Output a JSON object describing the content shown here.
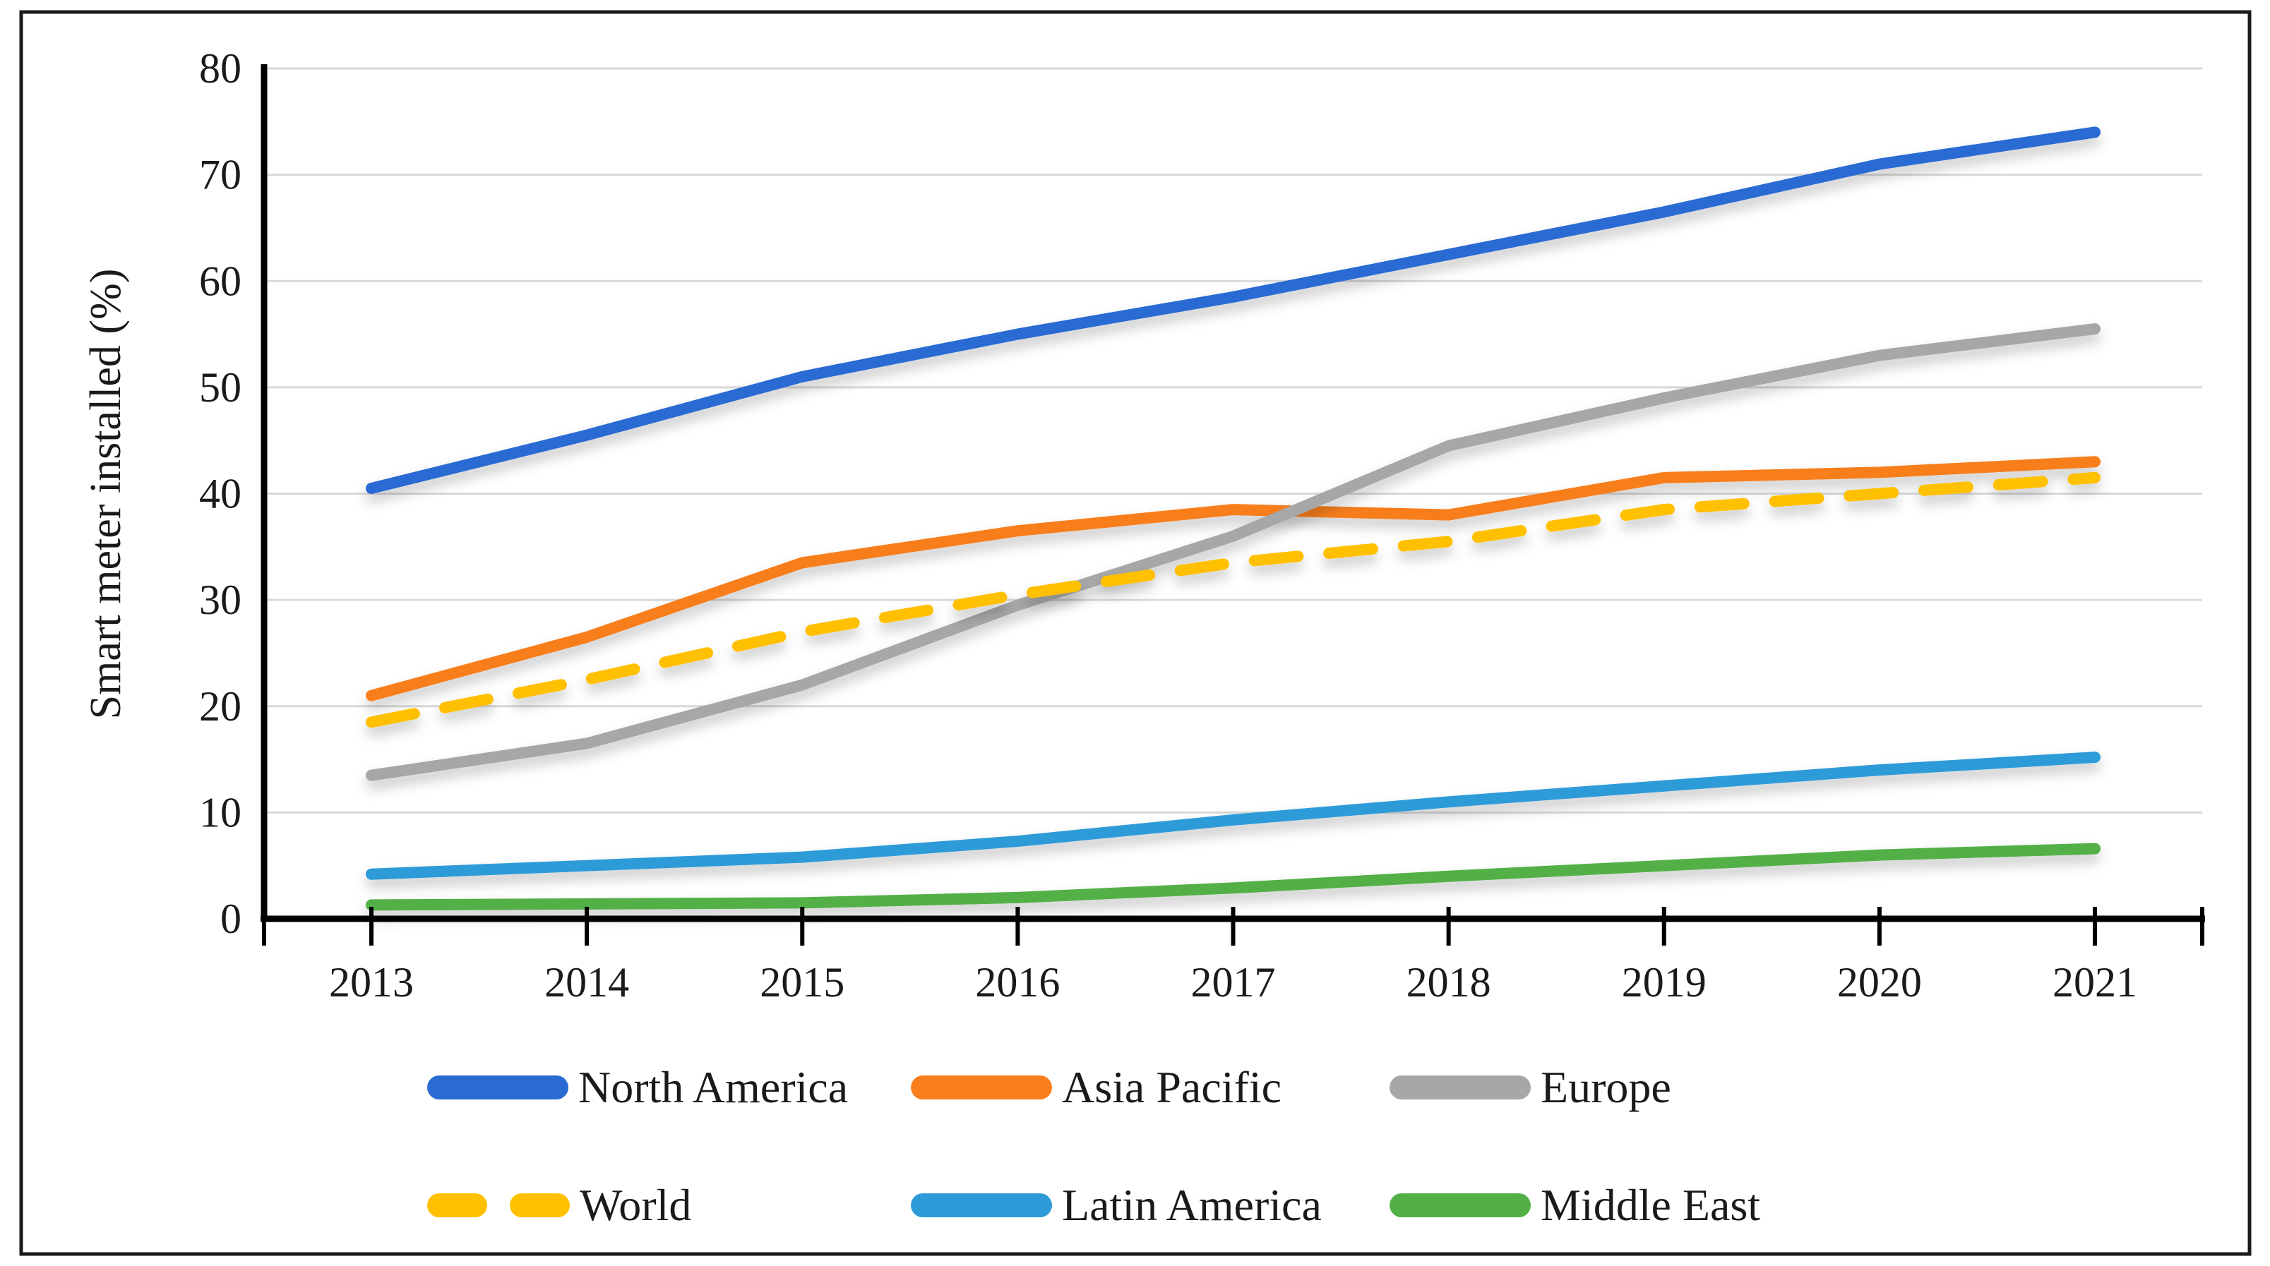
{
  "chart_data": {
    "type": "line",
    "title": "",
    "xlabel": "",
    "ylabel": "Smart meter installed (%)",
    "categories": [
      "2013",
      "2014",
      "2015",
      "2016",
      "2017",
      "2018",
      "2019",
      "2020",
      "2021"
    ],
    "yticks": [
      "80",
      "70",
      "60",
      "50",
      "40",
      "30",
      "20",
      "10",
      "0"
    ],
    "ylim": [
      0,
      80
    ],
    "ytick_step": 10,
    "grid": "horizontal",
    "legend_position": "bottom",
    "frame_color": "#1a1a1a",
    "gridline_color": "#d9d9d9",
    "series": [
      {
        "name": "North America",
        "color": "#2a6ad3",
        "dash": false,
        "values": [
          40.5,
          45.5,
          51,
          55,
          58.5,
          62.5,
          66.5,
          71,
          74
        ]
      },
      {
        "name": "Asia Pacific",
        "color": "#f87e1e",
        "dash": false,
        "values": [
          21,
          26.5,
          33.5,
          36.5,
          38.5,
          38,
          41.5,
          42,
          43
        ]
      },
      {
        "name": "Europe",
        "color": "#a7a7a7",
        "dash": false,
        "values": [
          13.5,
          16.5,
          22,
          29.5,
          36,
          44.5,
          49,
          53,
          55.5
        ]
      },
      {
        "name": "World",
        "color": "#ffc000",
        "dash": true,
        "values": [
          18.5,
          22.5,
          27,
          30.5,
          33.5,
          35.5,
          38.5,
          40,
          41.5
        ]
      },
      {
        "name": "Latin America",
        "color": "#2e9bd9",
        "dash": false,
        "values": [
          4.2,
          5,
          5.8,
          7.3,
          9.3,
          11,
          12.5,
          14,
          15.2
        ]
      },
      {
        "name": "Middle East",
        "color": "#52b047",
        "dash": false,
        "values": [
          1.3,
          1.4,
          1.5,
          2,
          2.9,
          4,
          5,
          6,
          6.6
        ]
      }
    ]
  }
}
